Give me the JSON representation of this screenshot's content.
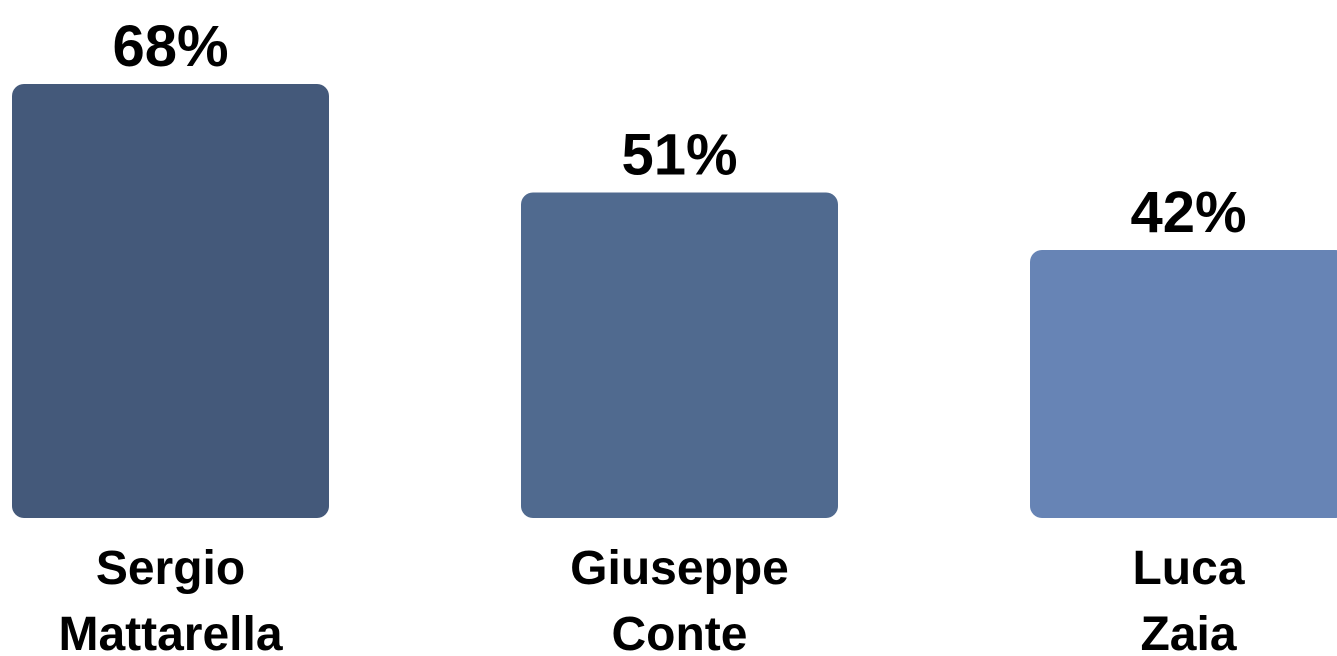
{
  "chart_data": {
    "type": "bar",
    "categories": [
      [
        "Sergio",
        "Mattarella"
      ],
      [
        "Giuseppe",
        "Conte"
      ],
      [
        "Luca",
        "Zaia"
      ]
    ],
    "values": [
      68,
      51,
      42
    ],
    "value_labels": [
      "68%",
      "51%",
      "42%"
    ],
    "colors": [
      "#44597a",
      "#506a8f",
      "#6784b5"
    ],
    "ylim": [
      0,
      68
    ],
    "grid": false,
    "legend": "none",
    "title": "",
    "xlabel": "",
    "ylabel": ""
  }
}
